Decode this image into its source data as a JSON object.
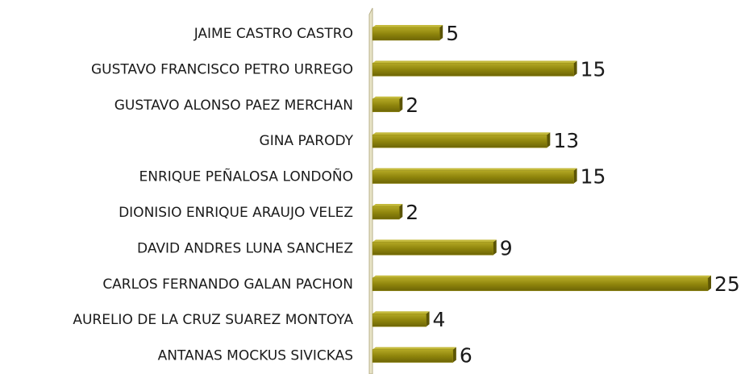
{
  "chart_data": {
    "type": "bar",
    "orientation": "horizontal",
    "categories": [
      "JAIME CASTRO CASTRO",
      "GUSTAVO FRANCISCO PETRO URREGO",
      "GUSTAVO ALONSO PAEZ MERCHAN",
      "GINA PARODY",
      "ENRIQUE PEÑALOSA LONDOÑO",
      "DIONISIO ENRIQUE ARAUJO VELEZ",
      "DAVID ANDRES LUNA SANCHEZ",
      "CARLOS FERNANDO GALAN PACHON",
      "AURELIO DE LA CRUZ SUAREZ MONTOYA",
      "ANTANAS MOCKUS SIVICKAS"
    ],
    "values": [
      5,
      15,
      2,
      13,
      15,
      2,
      9,
      25,
      4,
      6
    ],
    "color": "#8f850c"
  }
}
